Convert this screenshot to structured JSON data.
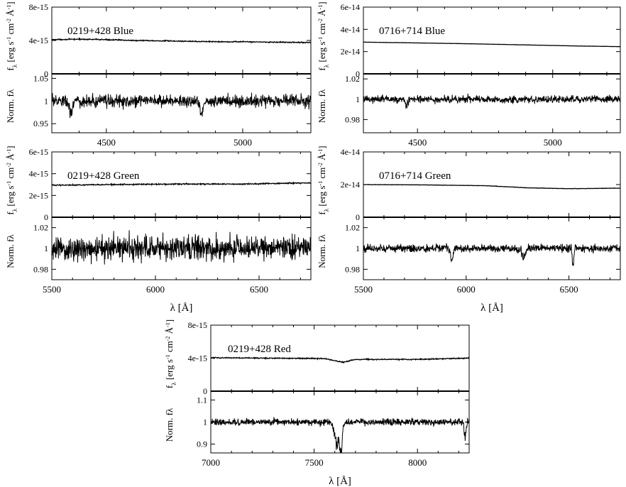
{
  "figure": {
    "flux_ylabel_html": "f<tspan baseline-shift='sub' font-size='9'>λ</tspan> [erg s<tspan baseline-shift='super' font-size='8'>-1</tspan> cm<tspan baseline-shift='super' font-size='8'>-2</tspan> Å<tspan baseline-shift='super' font-size='8'>-1</tspan>]",
    "flux_ylabel": "fλ [erg s-1 cm-2 Å-1]",
    "norm_ylabel": "Norm. fλ",
    "xlabel": "λ [Å]"
  },
  "chart_data": [
    {
      "id": "0219-blue",
      "type": "line",
      "title": "0219+428 Blue",
      "xlabel": "",
      "xlim": [
        4300,
        5250
      ],
      "xticks": [
        4500,
        5000
      ],
      "xtick_labels": [
        "4500",
        "5000"
      ],
      "flux": {
        "ylim": [
          0,
          8e-15
        ],
        "yticks": [
          0,
          4e-15,
          8e-15
        ],
        "ytick_labels": [
          "0",
          "4e-15",
          "8e-15"
        ],
        "x": [
          4300,
          4400,
          4500,
          4600,
          4700,
          4800,
          4900,
          5000,
          5100,
          5250
        ],
        "y": [
          4.1e-15,
          4.15e-15,
          4.1e-15,
          4e-15,
          3.95e-15,
          3.9e-15,
          3.85e-15,
          3.85e-15,
          3.8e-15,
          3.75e-15
        ],
        "noise": 6e-17
      },
      "norm": {
        "ylim": [
          0.93,
          1.06
        ],
        "yticks": [
          0.95,
          1,
          1.05
        ],
        "ytick_labels": [
          "0.95",
          "1",
          "1.05"
        ],
        "noise": 0.013,
        "features": [
          {
            "x": 4370,
            "depth": 0.03,
            "width": 6
          },
          {
            "x": 4850,
            "depth": 0.03,
            "width": 5
          }
        ]
      }
    },
    {
      "id": "0716-blue",
      "type": "line",
      "title": "0716+714 Blue",
      "xlabel": "",
      "xlim": [
        4300,
        5250
      ],
      "xticks": [
        4500,
        5000
      ],
      "xtick_labels": [
        "4500",
        "5000"
      ],
      "flux": {
        "ylim": [
          0,
          6e-14
        ],
        "yticks": [
          0,
          2e-14,
          4e-14,
          6e-14
        ],
        "ytick_labels": [
          "0",
          "2e-14",
          "4e-14",
          "6e-14"
        ],
        "x": [
          4300,
          4500,
          4700,
          4900,
          5100,
          5250
        ],
        "y": [
          2.85e-14,
          2.78e-14,
          2.7e-14,
          2.6e-14,
          2.5e-14,
          2.45e-14
        ],
        "noise": 1e-16
      },
      "norm": {
        "ylim": [
          0.967,
          1.025
        ],
        "yticks": [
          0.98,
          1,
          1.02
        ],
        "ytick_labels": [
          "0.98",
          "1",
          "1.02"
        ],
        "noise": 0.0035,
        "features": [
          {
            "x": 4460,
            "depth": 0.008,
            "width": 4
          }
        ]
      }
    },
    {
      "id": "0219-green",
      "type": "line",
      "title": "0219+428 Green",
      "xlabel": "λ [Å]",
      "xlim": [
        5500,
        6750
      ],
      "xticks": [
        5500,
        6000,
        6500
      ],
      "xtick_labels": [
        "5500",
        "6000",
        "6500"
      ],
      "flux": {
        "ylim": [
          0,
          6e-15
        ],
        "yticks": [
          0,
          2e-15,
          4e-15,
          6e-15
        ],
        "ytick_labels": [
          "0",
          "2e-15",
          "4e-15",
          "6e-15"
        ],
        "x": [
          5500,
          5800,
          6100,
          6400,
          6750
        ],
        "y": [
          2.95e-15,
          3e-15,
          3.05e-15,
          3.05e-15,
          3.15e-15
        ],
        "noise": 5e-17
      },
      "norm": {
        "ylim": [
          0.97,
          1.03
        ],
        "yticks": [
          0.98,
          1,
          1.02
        ],
        "ytick_labels": [
          "0.98",
          "1",
          "1.02"
        ],
        "noise": 0.011,
        "features": []
      }
    },
    {
      "id": "0716-green",
      "type": "line",
      "title": "0716+714 Green",
      "xlabel": "λ [Å]",
      "xlim": [
        5500,
        6750
      ],
      "xticks": [
        5500,
        6000,
        6500
      ],
      "xtick_labels": [
        "5500",
        "6000",
        "6500"
      ],
      "flux": {
        "ylim": [
          0,
          4e-14
        ],
        "yticks": [
          0,
          2e-14,
          4e-14
        ],
        "ytick_labels": [
          "0",
          "2e-14",
          "4e-14"
        ],
        "x": [
          5500,
          5800,
          6100,
          6300,
          6500,
          6750
        ],
        "y": [
          2e-14,
          1.98e-14,
          1.93e-14,
          1.8e-14,
          1.75e-14,
          1.78e-14
        ],
        "noise": 1.2e-16
      },
      "norm": {
        "ylim": [
          0.97,
          1.03
        ],
        "yticks": [
          0.98,
          1,
          1.02
        ],
        "ytick_labels": [
          "0.98",
          "1",
          "1.02"
        ],
        "noise": 0.0035,
        "features": [
          {
            "x": 5930,
            "depth": 0.012,
            "width": 6
          },
          {
            "x": 6280,
            "depth": 0.01,
            "width": 8
          },
          {
            "x": 6520,
            "depth": 0.018,
            "width": 4
          }
        ]
      }
    },
    {
      "id": "0219-red",
      "type": "line",
      "title": "0219+428 Red",
      "xlabel": "λ [Å]",
      "xlim": [
        7000,
        8250
      ],
      "xticks": [
        7000,
        7500,
        8000
      ],
      "xtick_labels": [
        "7000",
        "7500",
        "8000"
      ],
      "flux": {
        "ylim": [
          0,
          8e-15
        ],
        "yticks": [
          0,
          4e-15,
          8e-15
        ],
        "ytick_labels": [
          "0",
          "4e-15",
          "8e-15"
        ],
        "x": [
          7000,
          7300,
          7550,
          7600,
          7640,
          7700,
          8000,
          8250
        ],
        "y": [
          4.05e-15,
          4e-15,
          3.95e-15,
          3.7e-15,
          3.5e-15,
          3.85e-15,
          3.85e-15,
          4e-15
        ],
        "noise": 6e-17
      },
      "norm": {
        "ylim": [
          0.86,
          1.14
        ],
        "yticks": [
          0.9,
          1,
          1.1
        ],
        "ytick_labels": [
          "0.9",
          "1",
          "1.1"
        ],
        "noise": 0.015,
        "features": [
          {
            "x": 7610,
            "depth": 0.1,
            "width": 12
          },
          {
            "x": 7630,
            "depth": 0.12,
            "width": 6
          },
          {
            "x": 8230,
            "depth": 0.08,
            "width": 4
          }
        ]
      }
    }
  ]
}
